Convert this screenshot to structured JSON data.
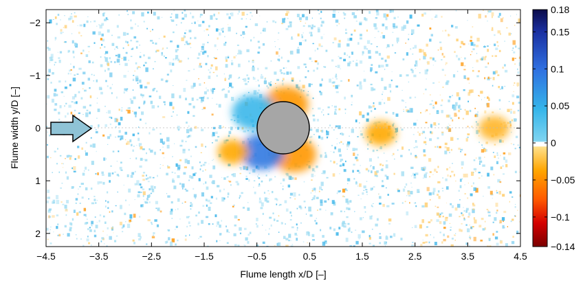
{
  "chart_data": {
    "type": "heatmap",
    "title": "",
    "xlabel": "Flume length x/D [–]",
    "ylabel": "Flume width y/D [–]",
    "xlim": [
      -4.5,
      4.5
    ],
    "ylim": [
      -2.25,
      2.25
    ],
    "y_reversed": true,
    "x_ticks": [
      -4.5,
      -3.5,
      -2.5,
      -1.5,
      -0.5,
      0.5,
      1.5,
      2.5,
      3.5,
      4.5
    ],
    "x_tick_labels": [
      "−4.5",
      "−3.5",
      "−2.5",
      "−1.5",
      "−0.5",
      "0.5",
      "1.5",
      "2.5",
      "3.5",
      "4.5"
    ],
    "y_ticks": [
      -2,
      -1,
      0,
      1,
      2
    ],
    "y_tick_labels": [
      "−2",
      "−1",
      "0",
      "1",
      "2"
    ],
    "colorbar": {
      "range": [
        -0.14,
        0.18
      ],
      "ticks": [
        0.18,
        0.15,
        0.1,
        0.05,
        0,
        -0.05,
        -0.1,
        -0.14
      ],
      "tick_labels": [
        "0.18",
        "0.15",
        "0.1",
        "0.05",
        "0",
        "−0.05",
        "−0.1",
        "−0.14"
      ],
      "colors": [
        "#0b0b4a",
        "#1a2fa0",
        "#2f6fe0",
        "#35b5ea",
        "#7fd4f0",
        "#ffffff",
        "#ffe08a",
        "#ffa500",
        "#ff5a00",
        "#d40000",
        "#7a0000"
      ]
    },
    "cylinder": {
      "center": [
        0,
        0
      ],
      "diameter": 1,
      "fill": "#a6a6a6"
    },
    "flow_arrow": {
      "direction": "+x",
      "fill": "#8fc3d6"
    },
    "features": [
      {
        "x": 0.05,
        "y": -0.45,
        "value": -0.05
      },
      {
        "x": 0.2,
        "y": 0.5,
        "value": -0.05
      },
      {
        "x": -0.4,
        "y": 0.45,
        "value": 0.1
      },
      {
        "x": -0.55,
        "y": -0.3,
        "value": 0.05
      },
      {
        "x": -0.95,
        "y": 0.45,
        "value": -0.04
      },
      {
        "x": 1.85,
        "y": 0.1,
        "value": -0.04
      },
      {
        "x": 4.0,
        "y": 0.0,
        "value": -0.03
      }
    ]
  }
}
